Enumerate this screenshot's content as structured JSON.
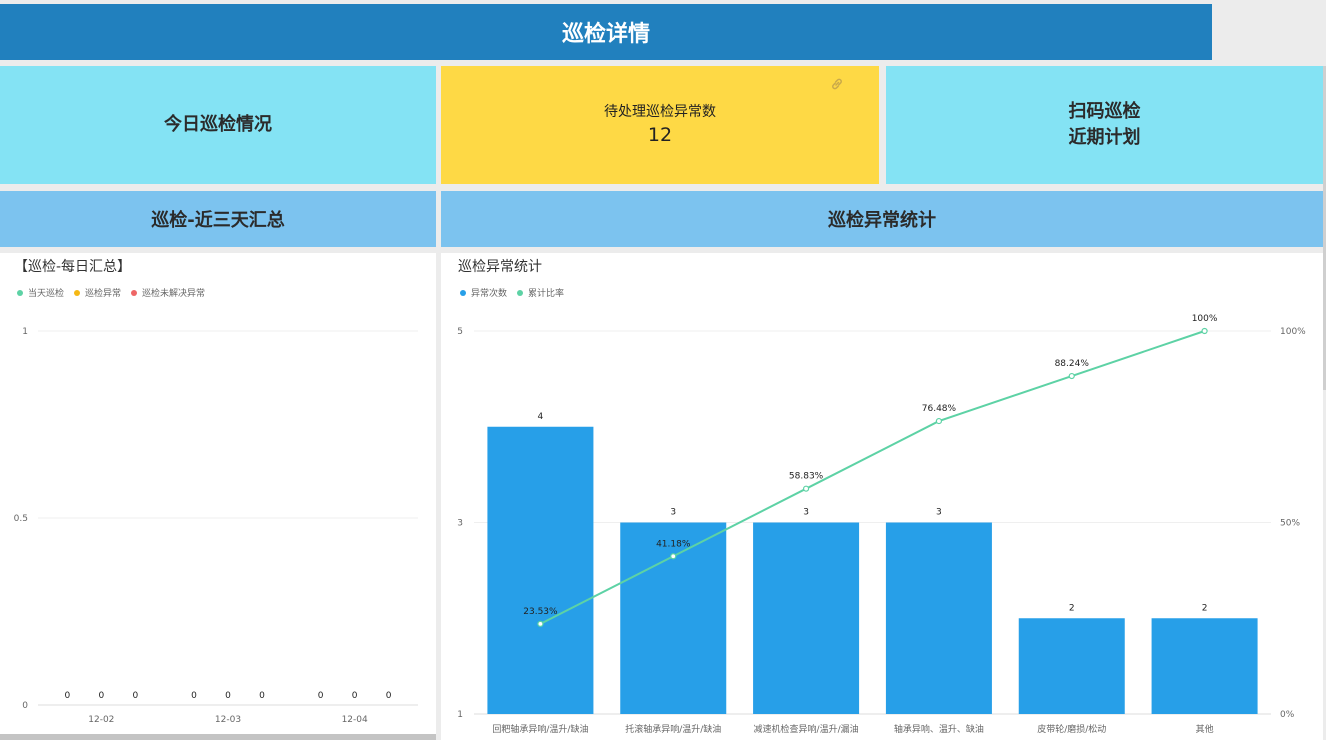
{
  "page": {
    "title": "巡检详情"
  },
  "tiles": {
    "today": "今日巡检情况",
    "pending_label": "待处理巡检异常数",
    "pending_count": "12",
    "scan_line1": "扫码巡检",
    "scan_line2": "近期计划"
  },
  "sections": {
    "left": "巡检-近三天汇总",
    "right": "巡检异常统计"
  },
  "icons": {
    "link": "link-icon"
  },
  "colors": {
    "title_bar": "#2180be",
    "tile_cyan": "#84e3f4",
    "tile_yellow": "#fed945",
    "section_head": "#7cc3ef",
    "bar_blue": "#279fe8",
    "line_green": "#5dd2a5",
    "legend_today": "#5dd2a5",
    "legend_abnormal": "#f5b814",
    "legend_unresolved": "#ee6666"
  },
  "chart_data": [
    {
      "type": "bar",
      "title": "【巡检-每日汇总】",
      "categories": [
        "12-02",
        "12-03",
        "12-04"
      ],
      "series": [
        {
          "name": "当天巡检",
          "values": [
            0,
            0,
            0
          ]
        },
        {
          "name": "巡检异常",
          "values": [
            0,
            0,
            0
          ]
        },
        {
          "name": "巡检未解决异常",
          "values": [
            0,
            0,
            0
          ]
        }
      ],
      "yticks": [
        "0",
        "0.5",
        "1"
      ],
      "ylim": [
        0,
        1
      ],
      "grid": true,
      "legend_position": "top-left"
    },
    {
      "type": "bar",
      "title": "巡检异常统计",
      "categories": [
        "回粑轴承异响/温升/缺油",
        "托滚轴承异响/温升/缺油",
        "减速机检查异响/温升/漏油",
        "轴承异响、温升、缺油",
        "皮带轮/磨损/松动",
        "其他"
      ],
      "series": [
        {
          "name": "异常次数",
          "type": "bar",
          "values": [
            4,
            3,
            3,
            3,
            2,
            2
          ]
        },
        {
          "name": "累计比率",
          "type": "line",
          "values": [
            23.53,
            41.18,
            58.83,
            76.48,
            88.24,
            100
          ]
        }
      ],
      "bar_labels": [
        "4",
        "3",
        "3",
        "3",
        "2",
        "2"
      ],
      "line_labels": [
        "23.53%",
        "41.18%",
        "58.83%",
        "76.48%",
        "88.24%",
        "100%"
      ],
      "yticks_left": [
        "1",
        "3",
        "5"
      ],
      "yticks_right": [
        "0%",
        "50%",
        "100%"
      ],
      "ylim_left": [
        1,
        5
      ],
      "ylim_right": [
        0,
        100
      ],
      "grid": true,
      "legend_position": "top-left"
    }
  ]
}
